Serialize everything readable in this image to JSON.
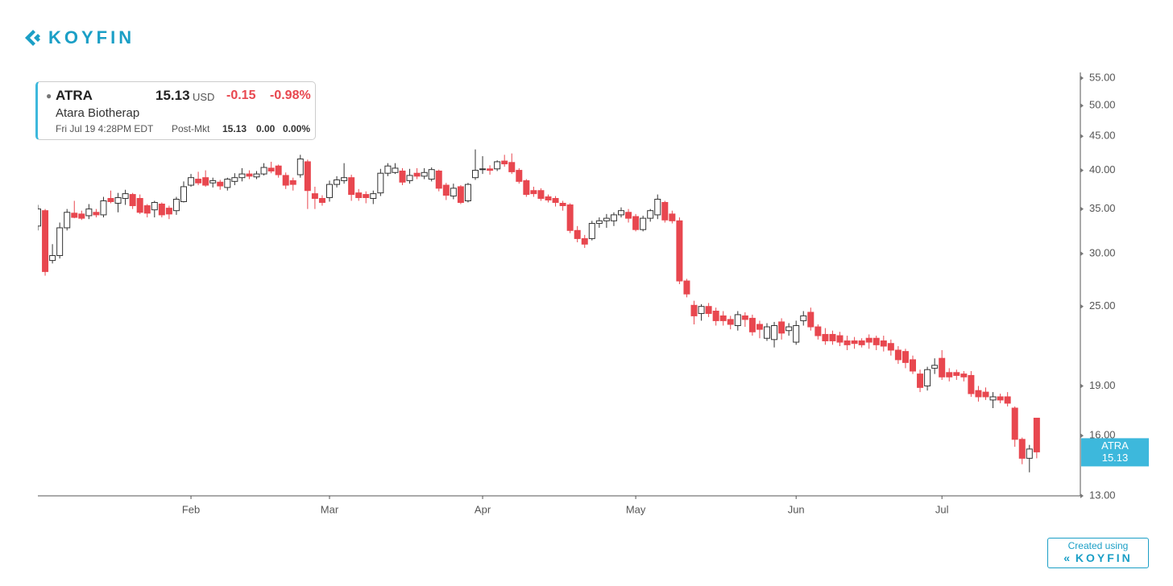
{
  "header": {
    "logo": "KOYFIN"
  },
  "quote": {
    "symbol": "ATRA",
    "price": 15.13,
    "currency": "USD",
    "change": "-0.15",
    "change_pct": "-0.98%",
    "name": "Atara Biotherap",
    "time": "Fri Jul 19 4:28PM EDT",
    "session": "Post-Mkt",
    "post_price": "15.13",
    "post_change": "0.00",
    "post_change_pct": "0.00%"
  },
  "chart_data": {
    "type": "candlestick",
    "name": "ATRA",
    "log_scale": true,
    "grid": false,
    "up_color": "#ffffff",
    "down_color": "#e8474f",
    "badge_color": "#3db8dc",
    "categories": [
      null,
      null,
      null,
      null,
      null,
      null,
      null,
      null,
      null,
      null,
      null,
      null,
      null,
      null,
      null,
      null,
      null,
      null,
      null,
      null,
      null,
      "Feb",
      null,
      null,
      null,
      null,
      null,
      null,
      null,
      null,
      null,
      null,
      null,
      null,
      null,
      null,
      null,
      null,
      null,
      null,
      "Mar",
      null,
      null,
      null,
      null,
      null,
      null,
      null,
      null,
      null,
      null,
      null,
      null,
      null,
      null,
      null,
      null,
      null,
      null,
      null,
      null,
      "Apr",
      null,
      null,
      null,
      null,
      null,
      null,
      null,
      null,
      null,
      null,
      null,
      null,
      null,
      null,
      null,
      null,
      null,
      null,
      null,
      null,
      "May",
      null,
      null,
      null,
      null,
      null,
      null,
      null,
      null,
      null,
      null,
      null,
      null,
      null,
      null,
      null,
      null,
      null,
      null,
      null,
      null,
      null,
      "Jun",
      null,
      null,
      null,
      null,
      null,
      null,
      null,
      null,
      null,
      null,
      null,
      null,
      null,
      null,
      null,
      null,
      null,
      null,
      null,
      "Jul",
      null,
      null,
      null,
      null,
      null,
      null,
      null,
      null,
      null,
      null,
      null,
      null,
      null
    ],
    "open": [
      33.0,
      34.8,
      29.3,
      29.8,
      32.8,
      34.5,
      34.4,
      34.2,
      34.6,
      34.3,
      36.3,
      35.7,
      36.3,
      36.8,
      36.3,
      35.4,
      34.9,
      35.6,
      35.1,
      34.8,
      35.9,
      38.0,
      38.8,
      39.0,
      38.3,
      38.4,
      37.7,
      38.5,
      39.0,
      39.5,
      39.1,
      39.5,
      40.3,
      40.6,
      39.3,
      38.6,
      39.4,
      41.2,
      36.9,
      36.3,
      36.4,
      38.1,
      38.6,
      39.0,
      37.0,
      36.8,
      36.3,
      37.0,
      39.6,
      39.7,
      39.9,
      38.6,
      39.6,
      39.2,
      38.8,
      39.9,
      38.0,
      36.6,
      37.8,
      36.0,
      39.0,
      40.1,
      40.2,
      40.2,
      41.3,
      41.1,
      40.0,
      38.6,
      37.3,
      37.3,
      36.5,
      36.3,
      35.7,
      35.5,
      32.5,
      31.6,
      31.6,
      33.3,
      33.6,
      33.6,
      34.3,
      34.6,
      34.1,
      32.6,
      33.9,
      34.3,
      35.8,
      34.4,
      33.6,
      27.3,
      25.1,
      24.4,
      25.0,
      24.6,
      24.2,
      23.9,
      23.4,
      24.2,
      24.0,
      23.5,
      22.4,
      22.3,
      23.7,
      23.0,
      22.1,
      23.8,
      24.5,
      23.3,
      22.7,
      22.7,
      22.6,
      22.2,
      22.2,
      22.2,
      22.4,
      22.4,
      22.2,
      22.0,
      21.5,
      21.4,
      20.8,
      19.8,
      19.0,
      20.2,
      20.9,
      19.9,
      19.9,
      19.8,
      19.7,
      18.7,
      18.6,
      18.1,
      18.3,
      18.3,
      17.6,
      15.8,
      14.8,
      17.0
    ],
    "high": [
      35.5,
      35.0,
      31.0,
      33.4,
      35.0,
      36.0,
      34.8,
      35.6,
      35.0,
      36.5,
      37.3,
      37.0,
      37.4,
      37.0,
      36.8,
      35.6,
      36.0,
      35.8,
      35.4,
      36.5,
      38.5,
      39.5,
      39.8,
      40.0,
      39.0,
      38.7,
      39.0,
      39.6,
      40.3,
      40.0,
      39.9,
      41.0,
      41.2,
      40.8,
      39.7,
      39.0,
      42.2,
      41.5,
      37.8,
      36.7,
      38.6,
      39.2,
      41.0,
      39.4,
      37.5,
      37.2,
      37.3,
      40.2,
      41.0,
      41.0,
      40.3,
      40.2,
      40.3,
      40.3,
      40.4,
      40.1,
      38.3,
      38.2,
      38.0,
      38.3,
      43.0,
      42.0,
      40.7,
      41.4,
      42.2,
      42.4,
      40.3,
      38.8,
      37.8,
      37.6,
      36.8,
      36.6,
      36.0,
      35.7,
      33.0,
      32.0,
      33.6,
      34.0,
      34.4,
      34.6,
      35.2,
      35.0,
      34.4,
      34.2,
      35.0,
      36.8,
      36.0,
      34.8,
      34.0,
      27.5,
      25.5,
      25.2,
      25.3,
      24.9,
      24.6,
      24.2,
      24.6,
      24.5,
      24.3,
      23.8,
      23.6,
      23.7,
      24.0,
      23.6,
      23.8,
      24.6,
      24.9,
      23.5,
      23.2,
      23.0,
      22.9,
      22.6,
      22.5,
      22.4,
      22.7,
      22.6,
      22.6,
      22.3,
      21.8,
      21.6,
      21.1,
      20.1,
      20.3,
      20.9,
      21.5,
      20.2,
      20.1,
      20.0,
      20.0,
      19.0,
      18.9,
      18.6,
      18.5,
      18.6,
      17.7,
      15.9,
      15.5,
      17.0
    ],
    "low": [
      32.5,
      27.8,
      29.0,
      29.5,
      32.5,
      33.9,
      33.7,
      33.8,
      34.0,
      34.0,
      35.7,
      34.6,
      35.5,
      35.0,
      34.4,
      34.0,
      34.0,
      34.0,
      33.8,
      34.3,
      35.8,
      37.8,
      38.0,
      37.8,
      37.7,
      37.4,
      37.3,
      38.0,
      38.5,
      38.8,
      38.8,
      39.3,
      39.6,
      39.0,
      37.5,
      37.3,
      39.0,
      35.0,
      35.0,
      35.4,
      35.9,
      37.7,
      38.2,
      36.0,
      36.0,
      35.7,
      35.6,
      36.6,
      39.2,
      39.5,
      38.0,
      38.2,
      38.8,
      38.8,
      38.5,
      37.2,
      36.1,
      36.2,
      35.6,
      35.8,
      38.7,
      39.5,
      39.4,
      39.9,
      40.5,
      39.5,
      38.2,
      36.5,
      36.5,
      36.0,
      35.8,
      35.3,
      34.8,
      32.2,
      31.2,
      30.6,
      31.4,
      32.8,
      32.8,
      33.0,
      34.0,
      33.4,
      32.4,
      32.4,
      33.5,
      33.8,
      33.4,
      33.3,
      27.0,
      25.8,
      23.5,
      23.8,
      24.1,
      23.4,
      23.4,
      23.1,
      23.0,
      23.3,
      22.6,
      22.4,
      22.2,
      21.7,
      22.3,
      22.6,
      21.9,
      23.4,
      23.0,
      22.3,
      21.9,
      21.9,
      21.8,
      21.5,
      21.6,
      21.7,
      21.6,
      21.5,
      21.4,
      21.1,
      20.5,
      20.2,
      19.8,
      18.6,
      18.7,
      19.8,
      19.4,
      19.3,
      19.4,
      19.3,
      18.3,
      18.0,
      18.1,
      17.6,
      17.9,
      17.7,
      15.4,
      14.5,
      14.1,
      14.8
    ],
    "close": [
      35.0,
      28.2,
      29.8,
      32.8,
      34.6,
      34.0,
      33.9,
      35.0,
      34.3,
      36.0,
      35.9,
      36.4,
      36.9,
      35.4,
      34.6,
      34.5,
      35.8,
      34.3,
      34.4,
      36.2,
      37.8,
      39.0,
      38.3,
      38.0,
      38.6,
      37.9,
      38.8,
      39.0,
      39.5,
      39.2,
      39.5,
      40.4,
      39.9,
      39.4,
      38.0,
      38.1,
      41.6,
      37.3,
      36.3,
      35.8,
      38.1,
      38.7,
      39.0,
      36.8,
      36.4,
      36.4,
      36.9,
      39.6,
      40.6,
      40.3,
      38.4,
      39.3,
      39.2,
      39.7,
      40.1,
      37.6,
      36.7,
      37.6,
      35.8,
      38.1,
      40.0,
      40.2,
      40.0,
      41.2,
      40.9,
      39.8,
      38.5,
      36.8,
      36.9,
      36.3,
      36.1,
      35.8,
      35.4,
      32.5,
      31.6,
      31.0,
      33.3,
      33.6,
      33.9,
      34.3,
      34.8,
      33.9,
      32.6,
      33.9,
      34.8,
      36.2,
      33.7,
      33.6,
      27.3,
      26.1,
      24.2,
      25.0,
      24.4,
      23.8,
      23.8,
      23.5,
      24.3,
      23.9,
      22.9,
      23.1,
      23.3,
      23.4,
      22.8,
      23.3,
      23.4,
      24.2,
      23.3,
      22.6,
      22.2,
      22.2,
      22.1,
      21.9,
      22.0,
      21.9,
      22.1,
      21.9,
      21.8,
      21.5,
      20.8,
      20.6,
      20.0,
      18.9,
      20.1,
      20.4,
      19.6,
      19.6,
      19.7,
      19.6,
      18.5,
      18.3,
      18.3,
      18.3,
      18.1,
      17.9,
      15.8,
      14.8,
      15.28,
      15.13
    ],
    "ylim": [
      13,
      55
    ],
    "yticks": [
      {
        "value": 13,
        "label": "13.00"
      },
      {
        "value": 16,
        "label": "16.00"
      },
      {
        "value": 19,
        "label": "19.00"
      },
      {
        "value": 25,
        "label": "25.00"
      },
      {
        "value": 30,
        "label": "30.00"
      },
      {
        "value": 35,
        "label": "35.00"
      },
      {
        "value": 40,
        "label": "40.00"
      },
      {
        "value": 45,
        "label": "45.00"
      },
      {
        "value": 50,
        "label": "50.00"
      },
      {
        "value": 55,
        "label": "55.00"
      }
    ]
  },
  "footer": {
    "created": "Created using",
    "logo": "KOYFIN"
  }
}
